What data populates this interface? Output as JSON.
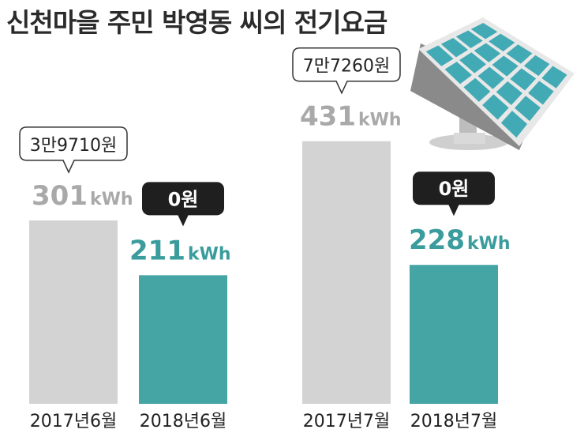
{
  "title": "신천마을 주민 박영동 씨의 전기요금",
  "colors": {
    "before": "#d3d3d3",
    "after": "#45a5a5",
    "before_text": "#a9a9a9",
    "after_text": "#3a9c9c",
    "panel": "#42aab4",
    "dark_bubble": "#1f1f1f"
  },
  "chart_data": {
    "type": "bar",
    "title": "신천마을 주민 박영동 씨의 전기요금",
    "unit": "kWh",
    "categories": [
      "2017년6월",
      "2018년6월",
      "2017년7월",
      "2018년7월"
    ],
    "values": [
      301,
      211,
      431,
      228
    ],
    "value_labels": [
      "301",
      "211",
      "431",
      "228"
    ],
    "costs": [
      "3만9710원",
      "0원",
      "7만7260원",
      "0원"
    ],
    "grid": false,
    "decoration": "solar-panel"
  }
}
